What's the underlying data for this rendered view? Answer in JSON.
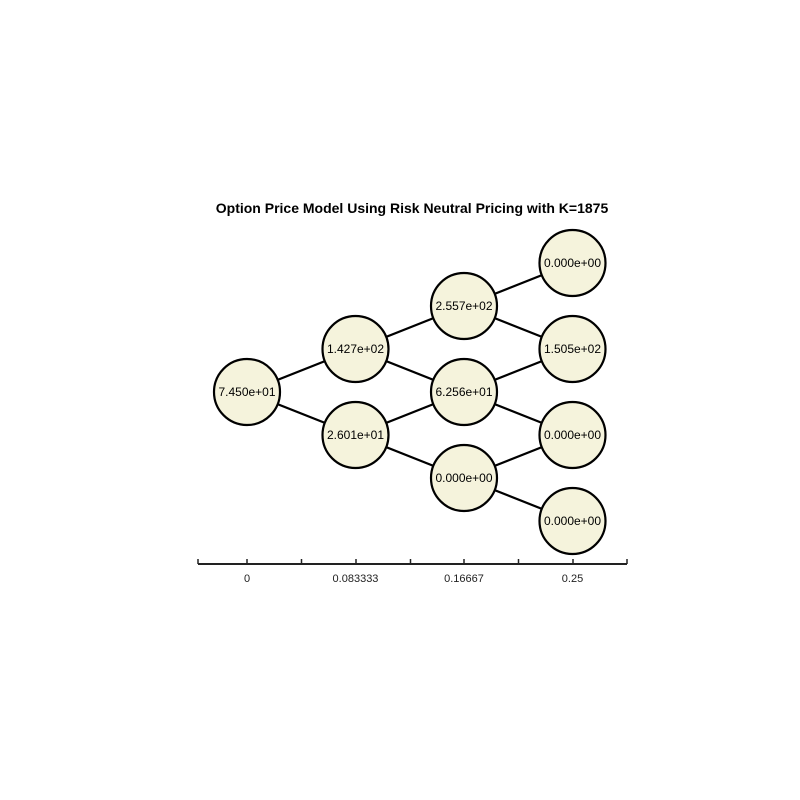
{
  "title": "Option Price Model Using Risk Neutral Pricing with K=1875",
  "colors": {
    "node_fill": "#f5f3dc",
    "node_stroke": "#000000",
    "edge": "#000000",
    "axis": "#222222"
  },
  "axis": {
    "tick_labels": [
      "0",
      "0.083333",
      "0.16667",
      "0.25"
    ]
  },
  "tree": {
    "steps": 3,
    "nodes": [
      {
        "id": "n0_0",
        "step": 0,
        "level": 0,
        "label": "7.450e+01"
      },
      {
        "id": "n1_0",
        "step": 1,
        "level": 0,
        "label": "1.427e+02"
      },
      {
        "id": "n1_1",
        "step": 1,
        "level": 1,
        "label": "2.601e+01"
      },
      {
        "id": "n2_0",
        "step": 2,
        "level": 0,
        "label": "2.557e+02"
      },
      {
        "id": "n2_1",
        "step": 2,
        "level": 1,
        "label": "6.256e+01"
      },
      {
        "id": "n2_2",
        "step": 2,
        "level": 2,
        "label": "0.000e+00"
      },
      {
        "id": "n3_0",
        "step": 3,
        "level": 0,
        "label": "0.000e+00"
      },
      {
        "id": "n3_1",
        "step": 3,
        "level": 1,
        "label": "1.505e+02"
      },
      {
        "id": "n3_2",
        "step": 3,
        "level": 2,
        "label": "0.000e+00"
      },
      {
        "id": "n3_3",
        "step": 3,
        "level": 3,
        "label": "0.000e+00"
      }
    ]
  }
}
